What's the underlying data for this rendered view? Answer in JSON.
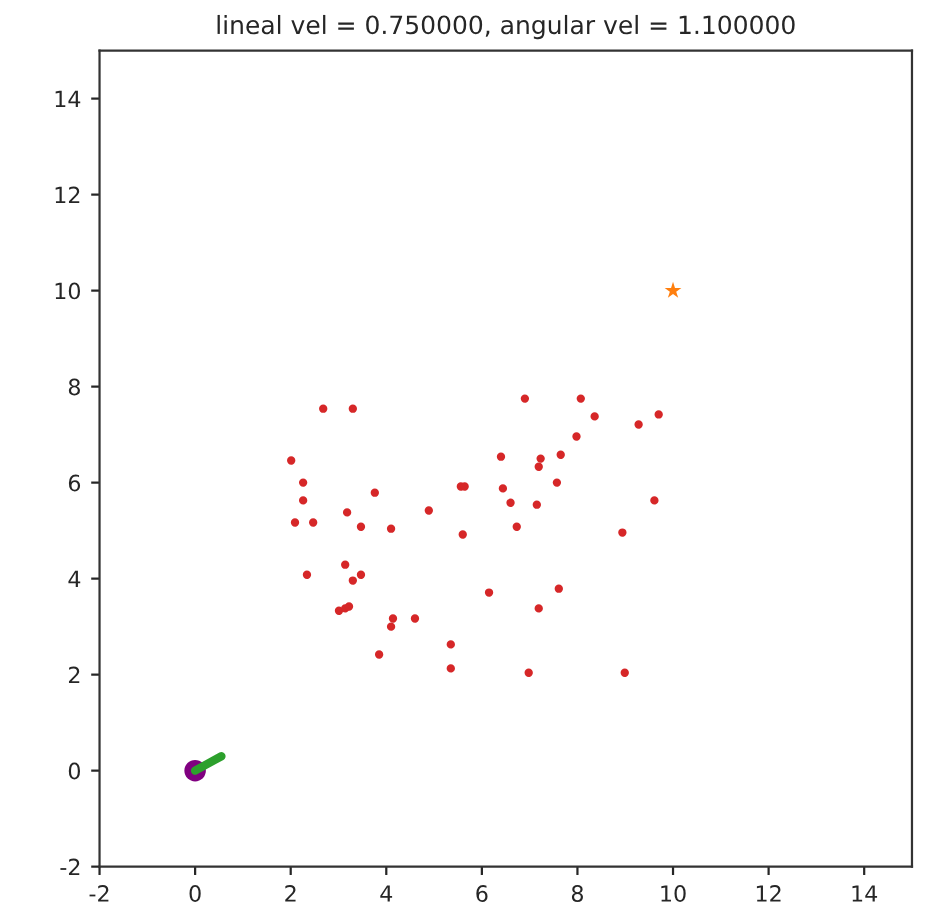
{
  "chart_data": {
    "type": "scatter",
    "title": "lineal vel = 0.750000, angular vel = 1.100000",
    "xlim": [
      -2,
      15
    ],
    "ylim": [
      -2,
      15
    ],
    "xticks": [
      -2,
      0,
      2,
      4,
      6,
      8,
      10,
      12,
      14
    ],
    "yticks": [
      -2,
      0,
      2,
      4,
      6,
      8,
      10,
      12,
      14
    ],
    "grid": false,
    "legend": false,
    "series": [
      {
        "marker": "circle",
        "color": "#d62728",
        "x": [
          2.68,
          3.3,
          2.01,
          2.26,
          2.26,
          2.09,
          2.47,
          3.76,
          3.18,
          3.47,
          4.1,
          2.34,
          3.14,
          3.3,
          3.47,
          3.01,
          3.14,
          3.22,
          4.14,
          4.1,
          4.6,
          3.85,
          5.35,
          5.35,
          4.89,
          5.6,
          5.56,
          5.64,
          6.9,
          8.07,
          8.36,
          9.7,
          9.28,
          7.98,
          6.4,
          7.23,
          7.65,
          7.19,
          7.57,
          6.44,
          6.6,
          7.15,
          9.61,
          6.73,
          8.94,
          6.15,
          7.61,
          7.19,
          6.98,
          8.99
        ],
        "values": [
          7.54,
          7.54,
          6.46,
          6.0,
          5.63,
          5.17,
          5.17,
          5.79,
          5.38,
          5.08,
          5.04,
          4.08,
          4.29,
          3.96,
          4.08,
          3.33,
          3.38,
          3.42,
          3.17,
          3.0,
          3.17,
          2.42,
          2.63,
          2.13,
          5.42,
          4.92,
          5.92,
          5.92,
          7.75,
          7.75,
          7.38,
          7.42,
          7.21,
          6.96,
          6.54,
          6.5,
          6.58,
          6.33,
          6.0,
          5.88,
          5.58,
          5.54,
          5.63,
          5.08,
          4.96,
          3.71,
          3.79,
          3.38,
          2.04,
          2.04
        ]
      },
      {
        "marker": "star",
        "color": "#ff7f0e",
        "x": [
          10
        ],
        "values": [
          10
        ]
      },
      {
        "type": "line",
        "marker": "none",
        "color": "#2ca02c",
        "x": [
          0,
          0.55
        ],
        "values": [
          0,
          0.3
        ]
      },
      {
        "marker": "circle",
        "color": "#800080",
        "x": [
          0
        ],
        "values": [
          0
        ]
      }
    ]
  }
}
